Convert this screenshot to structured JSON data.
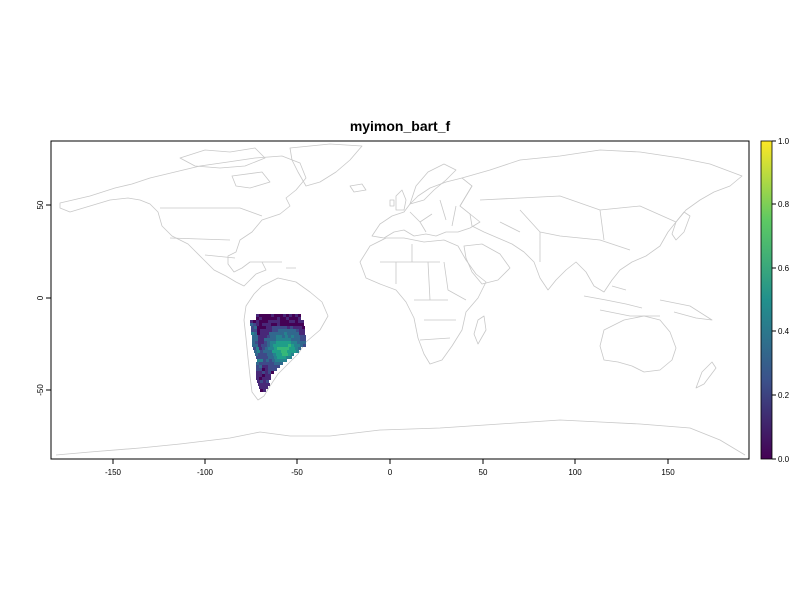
{
  "title": "myimon_bart_f",
  "map": {
    "x_ticks": [
      "-150",
      "-100",
      "-50",
      "0",
      "50",
      "100",
      "150"
    ],
    "y_ticks": [
      "50",
      "0",
      "-50"
    ],
    "xlim": [
      -185,
      192
    ],
    "ylim": [
      -87,
      85
    ],
    "basemap": "world country borders",
    "basemap_color": "#c8c8c8",
    "raster_region": "southern South America"
  },
  "legend": {
    "labels": [
      "0.0",
      "0.2",
      "0.4",
      "0.6",
      "0.8",
      "1.0"
    ],
    "range": [
      0,
      1
    ],
    "palette": [
      "#440154",
      "#3b528b",
      "#21908c",
      "#5dc963",
      "#fde725"
    ]
  }
}
